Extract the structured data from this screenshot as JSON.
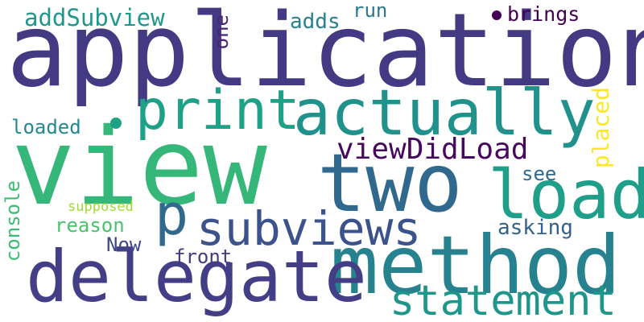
{
  "words": {
    "application": {
      "text": "application",
      "color": "#443983"
    },
    "view": {
      "text": "view",
      "color": "#35b779"
    },
    "two": {
      "text": "two",
      "color": "#31688e"
    },
    "method": {
      "text": "method",
      "color": "#26828e"
    },
    "delegate": {
      "text": "delegate",
      "color": "#433e85"
    },
    "actually": {
      "text": "actually",
      "color": "#21918c"
    },
    "load": {
      "text": "load",
      "color": "#1f9e89"
    },
    "statement": {
      "text": "statement",
      "color": "#1f968b"
    },
    "subviews": {
      "text": "subviews",
      "color": "#3b528b"
    },
    "print": {
      "text": "print",
      "color": "#1fa187"
    },
    "p": {
      "text": "p",
      "color": "#31688e"
    },
    "viewDidLoad": {
      "text": "viewDidLoad",
      "color": "#46085c"
    },
    "addSubview": {
      "text": "addSubview",
      "color": "#1f988b"
    },
    "adds": {
      "text": "adds",
      "color": "#26828e"
    },
    "run": {
      "text": "run",
      "color": "#2a788e"
    },
    "brings": {
      "text": "brings",
      "color": "#440154"
    },
    "loaded": {
      "text": "loaded",
      "color": "#23898e"
    },
    "reason": {
      "text": "reason",
      "color": "#4ac16d"
    },
    "supposed": {
      "text": "supposed",
      "color": "#a0da39"
    },
    "Now": {
      "text": "Now",
      "color": "#3e4989"
    },
    "front": {
      "text": "front",
      "color": "#443a83"
    },
    "asking": {
      "text": "asking",
      "color": "#34618d"
    },
    "see": {
      "text": "see",
      "color": "#31688e"
    },
    "one": {
      "text": "one",
      "color": "#482475"
    },
    "console": {
      "text": "console",
      "color": "#3dbc74"
    },
    "placed": {
      "text": "placed",
      "color": "#fde725"
    }
  },
  "dots": {
    "brings_dot": {
      "color": "#440154"
    },
    "mid_dot": {
      "color": "#1fa187"
    }
  }
}
